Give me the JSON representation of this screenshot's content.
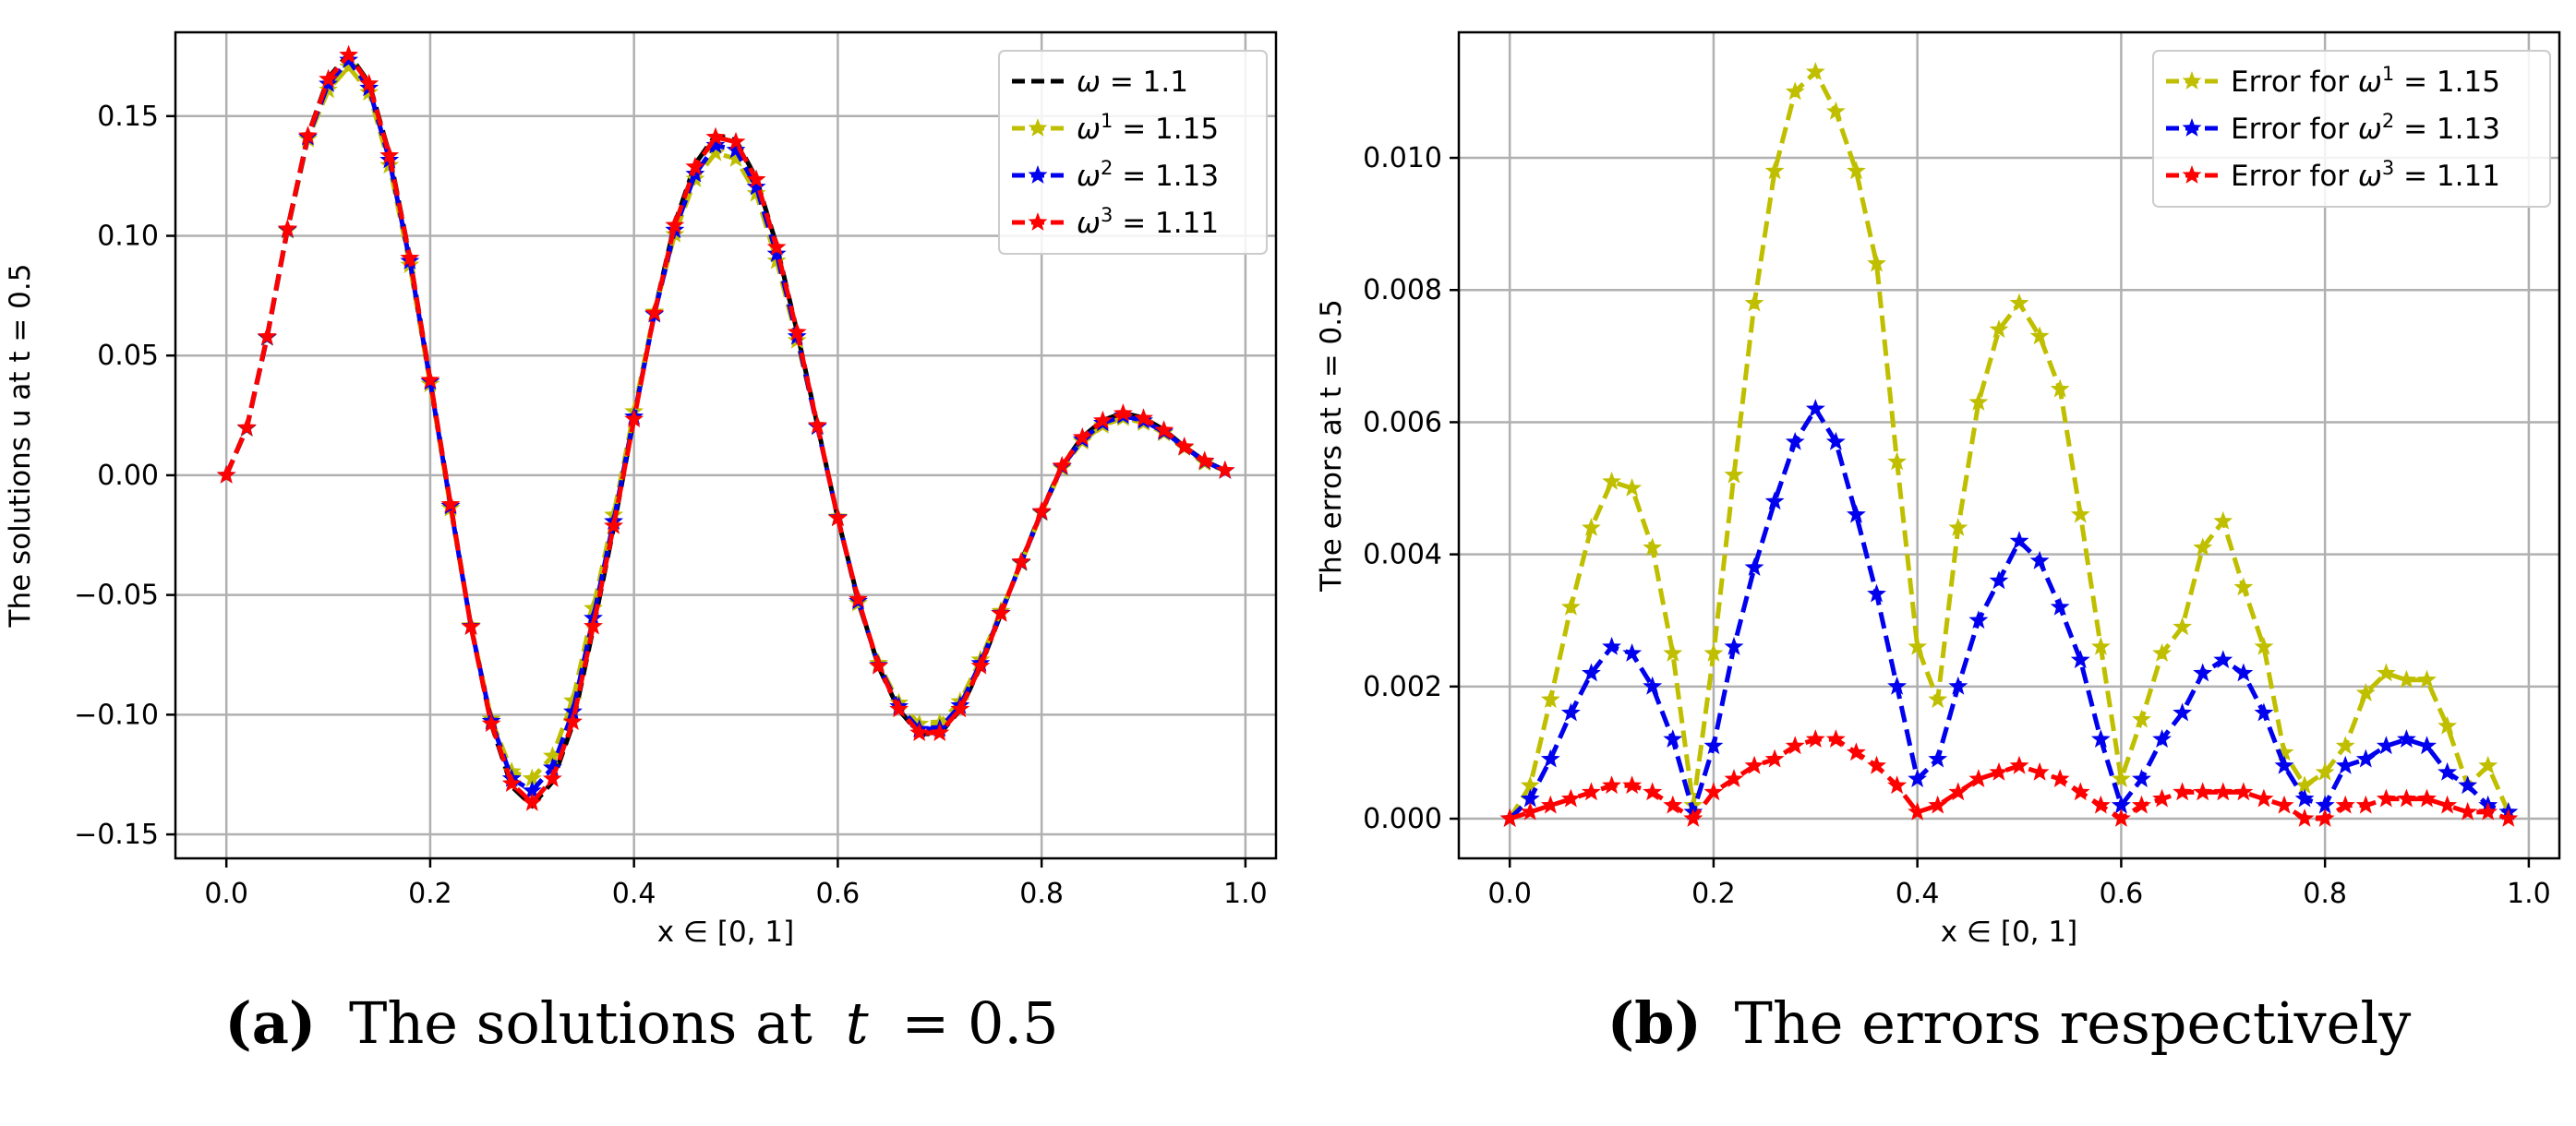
{
  "chart_data": [
    {
      "id": "a",
      "type": "line",
      "caption": {
        "letter": "(a)",
        "text": "The solutions at",
        "variable": "t",
        "suffix": "= 0.5"
      },
      "xlabel": "x ∈ [0, 1]",
      "ylabel": "The solutions u at t = 0.5",
      "xlim": [
        -0.05,
        1.03
      ],
      "ylim": [
        -0.16,
        0.185
      ],
      "xticks": [
        0.0,
        0.2,
        0.4,
        0.6,
        0.8,
        1.0
      ],
      "xtick_labels": [
        "0.0",
        "0.2",
        "0.4",
        "0.6",
        "0.8",
        "1.0"
      ],
      "yticks": [
        -0.15,
        -0.1,
        -0.05,
        0.0,
        0.05,
        0.1,
        0.15
      ],
      "ytick_labels": [
        "−0.15",
        "−0.10",
        "−0.05",
        "0.00",
        "0.05",
        "0.10",
        "0.15"
      ],
      "grid": true,
      "legend_position": "top-right",
      "x": [
        0.0,
        0.02,
        0.04,
        0.06,
        0.08,
        0.1,
        0.12,
        0.14,
        0.16,
        0.18,
        0.2,
        0.22,
        0.24,
        0.26,
        0.28,
        0.3,
        0.32,
        0.34,
        0.36,
        0.38,
        0.4,
        0.42,
        0.44,
        0.46,
        0.48,
        0.5,
        0.52,
        0.54,
        0.56,
        0.58,
        0.6,
        0.62,
        0.64,
        0.66,
        0.68,
        0.7,
        0.72,
        0.74,
        0.76,
        0.78,
        0.8,
        0.82,
        0.84,
        0.86,
        0.88,
        0.9,
        0.92,
        0.94,
        0.96,
        0.98
      ],
      "series": [
        {
          "name": "ω  = 1.1",
          "symbol": "ω",
          "sup": "",
          "rest": "  = 1.1",
          "color": "#000000",
          "marker": "none",
          "values": [
            0.0,
            0.02,
            0.058,
            0.103,
            0.142,
            0.166,
            0.176,
            0.164,
            0.134,
            0.091,
            0.04,
            -0.012,
            -0.063,
            -0.104,
            -0.13,
            -0.138,
            -0.128,
            -0.104,
            -0.064,
            -0.022,
            0.024,
            0.068,
            0.105,
            0.13,
            0.142,
            0.14,
            0.124,
            0.096,
            0.06,
            0.021,
            -0.018,
            -0.052,
            -0.08,
            -0.098,
            -0.108,
            -0.108,
            -0.098,
            -0.08,
            -0.058,
            -0.036,
            -0.015,
            0.004,
            0.016,
            0.023,
            0.026,
            0.024,
            0.019,
            0.012,
            0.006,
            0.002
          ]
        },
        {
          "name": "ω¹ = 1.15",
          "symbol": "ω",
          "sup": "1",
          "rest": " = 1.15",
          "color": "#bfbf00",
          "marker": "star",
          "values": [
            0.0,
            0.0195,
            0.0574,
            0.1022,
            0.1404,
            0.1609,
            0.1706,
            0.1599,
            0.1294,
            0.0878,
            0.0381,
            -0.0138,
            -0.0628,
            -0.1018,
            -0.1238,
            -0.1267,
            -0.1173,
            -0.0942,
            -0.0556,
            -0.0166,
            0.0266,
            0.0682,
            0.1006,
            0.1237,
            0.1346,
            0.1322,
            0.1177,
            0.0895,
            0.0563,
            0.0208,
            -0.0174,
            -0.0535,
            -0.0785,
            -0.0951,
            -0.1039,
            -0.1035,
            -0.0945,
            -0.0771,
            -0.0568,
            -0.0367,
            -0.0157,
            0.0029,
            0.0141,
            0.0208,
            0.0239,
            0.0219,
            0.0176,
            0.0115,
            0.0052,
            0.0019
          ]
        },
        {
          "name": "ω² = 1.13",
          "symbol": "ω",
          "sup": "2",
          "rest": " = 1.13",
          "color": "#0000ee",
          "marker": "star",
          "values": [
            0.0,
            0.0197,
            0.0576,
            0.1026,
            0.1412,
            0.1634,
            0.1734,
            0.1617,
            0.1316,
            0.0894,
            0.0391,
            -0.0129,
            -0.0631,
            -0.1027,
            -0.1267,
            -0.1318,
            -0.1222,
            -0.0988,
            -0.0597,
            -0.0193,
            0.0244,
            0.0672,
            0.1024,
            0.1258,
            0.1378,
            0.1358,
            0.1204,
            0.0924,
            0.0579,
            0.0203,
            -0.0177,
            -0.0526,
            -0.0794,
            -0.0966,
            -0.1061,
            -0.1058,
            -0.0962,
            -0.0786,
            -0.0576,
            -0.0364,
            -0.0154,
            0.0035,
            0.0149,
            0.0218,
            0.0248,
            0.0228,
            0.0182,
            0.0118,
            0.0058,
            0.0019
          ]
        },
        {
          "name": "ω³ = 1.11",
          "symbol": "ω",
          "sup": "3",
          "rest": " = 1.11",
          "color": "#ff0000",
          "marker": "star",
          "values": [
            0.0,
            0.0199,
            0.0579,
            0.1029,
            0.1418,
            0.1654,
            0.1755,
            0.1635,
            0.1335,
            0.0907,
            0.0397,
            -0.0122,
            -0.0633,
            -0.1038,
            -0.1288,
            -0.1368,
            -0.1268,
            -0.103,
            -0.0631,
            -0.0212,
            0.0234,
            0.0677,
            0.1044,
            0.1288,
            0.1412,
            0.1392,
            0.1235,
            0.0952,
            0.0597,
            0.0208,
            -0.0179,
            -0.0518,
            -0.0797,
            -0.0977,
            -0.1076,
            -0.1076,
            -0.0977,
            -0.0797,
            -0.0578,
            -0.0361,
            -0.0151,
            0.0039,
            0.0158,
            0.0228,
            0.0258,
            0.0238,
            0.0188,
            0.0119,
            0.006,
            0.002
          ]
        }
      ]
    },
    {
      "id": "b",
      "type": "line",
      "caption": {
        "letter": "(b)",
        "text": "The errors respectively"
      },
      "xlabel": "x ∈ [0, 1]",
      "ylabel": "The errors at t = 0.5",
      "xlim": [
        -0.05,
        1.03
      ],
      "ylim": [
        -0.0006,
        0.0119
      ],
      "xticks": [
        0.0,
        0.2,
        0.4,
        0.6,
        0.8,
        1.0
      ],
      "xtick_labels": [
        "0.0",
        "0.2",
        "0.4",
        "0.6",
        "0.8",
        "1.0"
      ],
      "yticks": [
        0.0,
        0.002,
        0.004,
        0.006,
        0.008,
        0.01
      ],
      "ytick_labels": [
        "0.000",
        "0.002",
        "0.004",
        "0.006",
        "0.008",
        "0.010"
      ],
      "grid": true,
      "legend_position": "top-right",
      "x": [
        0.0,
        0.02,
        0.04,
        0.06,
        0.08,
        0.1,
        0.12,
        0.14,
        0.16,
        0.18,
        0.2,
        0.22,
        0.24,
        0.26,
        0.28,
        0.3,
        0.32,
        0.34,
        0.36,
        0.38,
        0.4,
        0.42,
        0.44,
        0.46,
        0.48,
        0.5,
        0.52,
        0.54,
        0.56,
        0.58,
        0.6,
        0.62,
        0.64,
        0.66,
        0.68,
        0.7,
        0.72,
        0.74,
        0.76,
        0.78,
        0.8,
        0.82,
        0.84,
        0.86,
        0.88,
        0.9,
        0.92,
        0.94,
        0.96,
        0.98
      ],
      "series": [
        {
          "name": "Error for ω¹ = 1.15",
          "prefix": "Error for ",
          "symbol": "ω",
          "sup": "1",
          "rest": " = 1.15",
          "color": "#bfbf00",
          "marker": "star",
          "values": [
            0.0,
            0.0005,
            0.0018,
            0.0032,
            0.0044,
            0.0051,
            0.005,
            0.0041,
            0.0025,
            0.0002,
            0.0025,
            0.0052,
            0.0078,
            0.0098,
            0.011,
            0.0113,
            0.0107,
            0.0098,
            0.0084,
            0.0054,
            0.0026,
            0.0018,
            0.0044,
            0.0063,
            0.0074,
            0.0078,
            0.0073,
            0.0065,
            0.0046,
            0.0026,
            0.0006,
            0.0015,
            0.0025,
            0.0029,
            0.0041,
            0.0045,
            0.0035,
            0.0026,
            0.001,
            0.0005,
            0.0007,
            0.0011,
            0.0019,
            0.0022,
            0.0021,
            0.0021,
            0.0014,
            0.0005,
            0.0008,
            0.0001
          ]
        },
        {
          "name": "Error for ω² = 1.13",
          "prefix": "Error for ",
          "symbol": "ω",
          "sup": "2",
          "rest": " = 1.13",
          "color": "#0000ee",
          "marker": "star",
          "values": [
            0.0,
            0.0003,
            0.0009,
            0.0016,
            0.0022,
            0.0026,
            0.0025,
            0.002,
            0.0012,
            0.0001,
            0.0011,
            0.0026,
            0.0038,
            0.0048,
            0.0057,
            0.0062,
            0.0057,
            0.0046,
            0.0034,
            0.002,
            0.0006,
            0.0009,
            0.002,
            0.003,
            0.0036,
            0.0042,
            0.0039,
            0.0032,
            0.0024,
            0.0012,
            0.0002,
            0.0006,
            0.0012,
            0.0016,
            0.0022,
            0.0024,
            0.0022,
            0.0016,
            0.0008,
            0.0003,
            0.0002,
            0.0008,
            0.0009,
            0.0011,
            0.0012,
            0.0011,
            0.0007,
            0.0005,
            0.0002,
            0.0001
          ]
        },
        {
          "name": "Error for ω³ = 1.11",
          "prefix": "Error for ",
          "symbol": "ω",
          "sup": "3",
          "rest": " = 1.11",
          "color": "#ff0000",
          "marker": "star",
          "values": [
            0.0,
            0.0001,
            0.0002,
            0.0003,
            0.0004,
            0.0005,
            0.0005,
            0.0004,
            0.0002,
            0.0,
            0.0004,
            0.0006,
            0.0008,
            0.0009,
            0.0011,
            0.0012,
            0.0012,
            0.001,
            0.0008,
            0.0005,
            0.0001,
            0.0002,
            0.0004,
            0.0006,
            0.0007,
            0.0008,
            0.0007,
            0.0006,
            0.0004,
            0.0002,
            0.0,
            0.0002,
            0.0003,
            0.0004,
            0.0004,
            0.0004,
            0.0004,
            0.0003,
            0.0002,
            0.0,
            0.0,
            0.0002,
            0.0002,
            0.0003,
            0.0003,
            0.0003,
            0.0002,
            0.0001,
            0.0001,
            0.0
          ]
        }
      ]
    }
  ]
}
